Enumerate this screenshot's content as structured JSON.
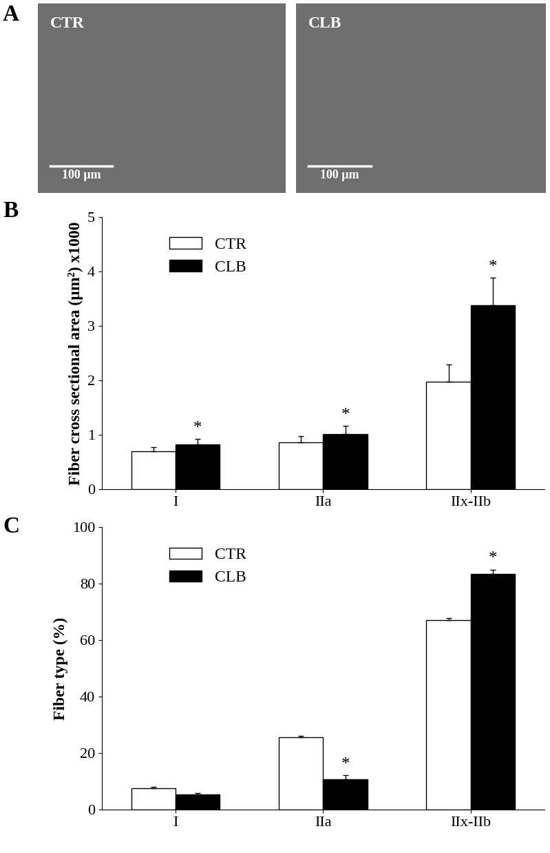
{
  "panel_labels": [
    "A",
    "B",
    "C"
  ],
  "images": [
    {
      "label": "CTR",
      "scale_bar": "100 µm"
    },
    {
      "label": "CLB",
      "scale_bar": "100 µm"
    }
  ],
  "chart_data": [
    {
      "type": "bar",
      "y_label": "Fiber cross sectional area (µm²) x1000",
      "categories": [
        "I",
        "IIa",
        "IIx-IIb"
      ],
      "series": [
        {
          "name": "CTR",
          "color": "#ffffff",
          "values": [
            0.69,
            0.86,
            1.97
          ],
          "errors": [
            0.08,
            0.11,
            0.32
          ]
        },
        {
          "name": "CLB",
          "color": "#000000",
          "values": [
            0.82,
            1.01,
            3.38
          ],
          "errors": [
            0.11,
            0.15,
            0.5
          ]
        }
      ],
      "annotations": [
        {
          "text": "*",
          "category": "I",
          "series": "CLB"
        },
        {
          "text": "*",
          "category": "IIa",
          "series": "CLB"
        },
        {
          "text": "*",
          "category": "IIx-IIb",
          "series": "CLB"
        }
      ],
      "ylim": [
        0,
        5
      ],
      "yticks": [
        0,
        1,
        2,
        3,
        4,
        5
      ],
      "legend": "upper left"
    },
    {
      "type": "bar",
      "y_label": "Fiber type (%)",
      "categories": [
        "I",
        "IIa",
        "IIx-IIb"
      ],
      "series": [
        {
          "name": "CTR",
          "color": "#ffffff",
          "values": [
            7.5,
            25.5,
            67
          ],
          "errors": [
            0.6,
            0.7,
            0.8
          ]
        },
        {
          "name": "CLB",
          "color": "#000000",
          "values": [
            5.3,
            10.8,
            83.5
          ],
          "errors": [
            0.5,
            1.3,
            1.5
          ]
        }
      ],
      "annotations": [
        {
          "text": "*",
          "category": "IIa",
          "series": "CLB"
        },
        {
          "text": "*",
          "category": "IIx-IIb",
          "series": "CLB"
        }
      ],
      "ylim": [
        0,
        100
      ],
      "yticks": [
        0,
        20,
        40,
        60,
        80,
        100
      ],
      "legend": "upper left"
    }
  ]
}
